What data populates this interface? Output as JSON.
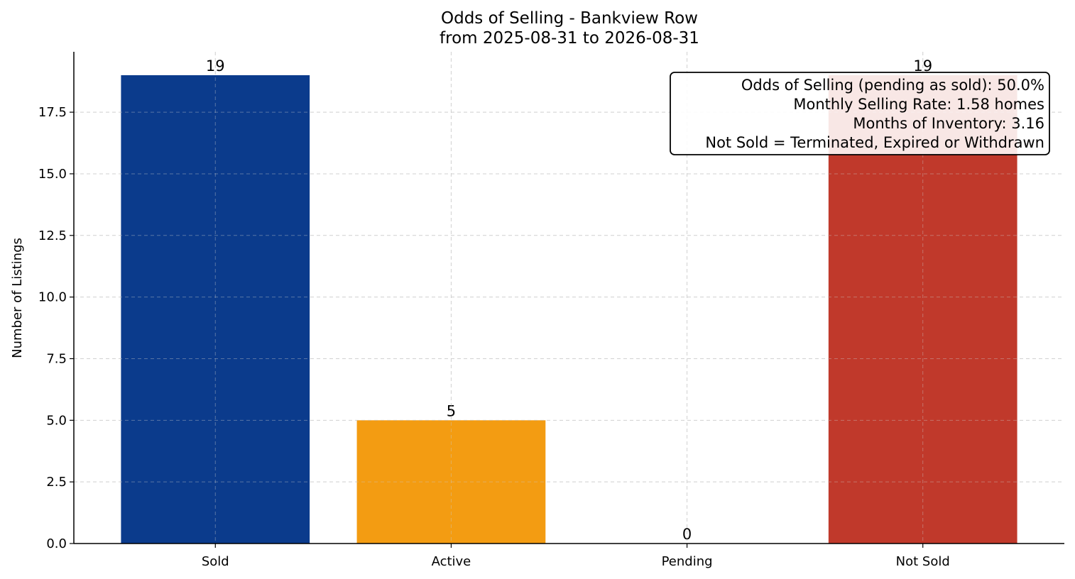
{
  "chart_data": {
    "type": "bar",
    "title": "Odds of Selling - Bankview Row",
    "subtitle": "from 2025-08-31 to 2026-08-31",
    "xlabel": "",
    "ylabel": "Number of Listings",
    "categories": [
      "Sold",
      "Active",
      "Pending",
      "Not Sold"
    ],
    "values": [
      19,
      5,
      0,
      19
    ],
    "value_labels": [
      "19",
      "5",
      "0",
      "19"
    ],
    "colors": [
      "#0b3b8c",
      "#f39c12",
      "#2e8b57",
      "#c0392b"
    ],
    "ylim": [
      0,
      19.95
    ],
    "yticks": [
      0,
      2.5,
      5,
      7.5,
      10,
      12.5,
      15,
      17.5
    ],
    "ytick_labels": [
      "0.0",
      "2.5",
      "5.0",
      "7.5",
      "10.0",
      "12.5",
      "15.0",
      "17.5"
    ],
    "grid": true,
    "annotation": {
      "placement": "top-right",
      "lines": [
        "Odds of Selling (pending as sold): 50.0%",
        "Monthly Selling Rate: 1.58 homes",
        "Months of Inventory: 3.16",
        "Not Sold = Terminated, Expired or Withdrawn"
      ]
    }
  }
}
